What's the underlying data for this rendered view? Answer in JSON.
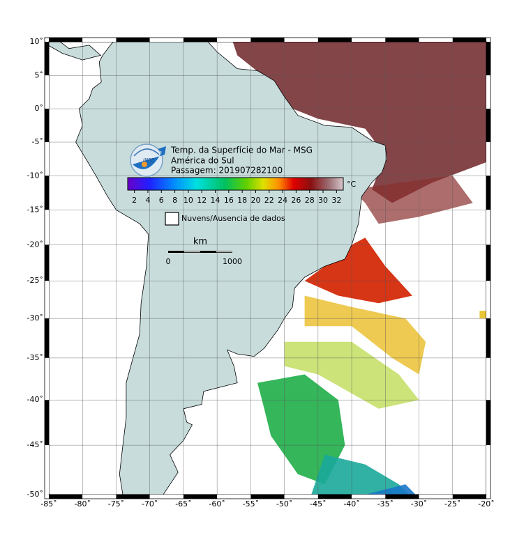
{
  "title_lines": [
    "Temp. da Superfície do Mar - MSG",
    "América do Sul",
    "Passagem: 201907282100"
  ],
  "logo": "INPE",
  "colorbar": {
    "unit": "°C",
    "lim": [
      1,
      33
    ],
    "ticks": [
      2,
      4,
      6,
      8,
      10,
      12,
      14,
      16,
      18,
      20,
      22,
      24,
      26,
      28,
      30,
      32
    ]
  },
  "legend": "Nuvens/Ausencia de dados",
  "scale_bar": {
    "unit": "km",
    "labels": [
      "0",
      "1000"
    ]
  },
  "axes": {
    "lon_lim": [
      -85,
      -20
    ],
    "lat_lim": [
      -50,
      10
    ],
    "lon_ticks": [
      {
        "value": -85,
        "label": "-85˚"
      },
      {
        "value": -80,
        "label": "-80˚"
      },
      {
        "value": -75,
        "label": "-75˚"
      },
      {
        "value": -70,
        "label": "-70˚"
      },
      {
        "value": -65,
        "label": "-65˚"
      },
      {
        "value": -60,
        "label": "-60˚"
      },
      {
        "value": -55,
        "label": "-55˚"
      },
      {
        "value": -50,
        "label": "-50˚"
      },
      {
        "value": -45,
        "label": "-45˚"
      },
      {
        "value": -40,
        "label": "-40˚"
      },
      {
        "value": -35,
        "label": "-35˚"
      },
      {
        "value": -30,
        "label": "-30˚"
      },
      {
        "value": -25,
        "label": "-25˚"
      },
      {
        "value": -20,
        "label": "-20˚"
      }
    ],
    "lat_ticks": [
      {
        "value": 10,
        "label": "10˚"
      },
      {
        "value": 5,
        "label": "5˚"
      },
      {
        "value": 0,
        "label": "0˚"
      },
      {
        "value": -5,
        "label": "-5˚"
      },
      {
        "value": -10,
        "label": "-10˚"
      },
      {
        "value": -15,
        "label": "-15˚"
      },
      {
        "value": -20,
        "label": "-20˚"
      },
      {
        "value": -25,
        "label": "-25˚"
      },
      {
        "value": -30,
        "label": "-30˚"
      },
      {
        "value": -35,
        "label": "-35˚"
      },
      {
        "value": -40,
        "label": "-40˚"
      },
      {
        "value": -45,
        "label": "-45˚"
      },
      {
        "value": -50,
        "label": "-50˚"
      }
    ]
  }
}
